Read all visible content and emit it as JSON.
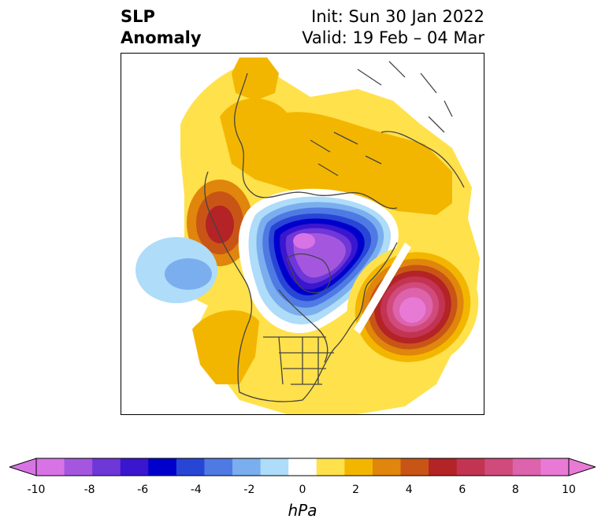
{
  "title": {
    "left_line1": "SLP",
    "left_line2": "Anomaly",
    "right_line1": "Init: Sun 30 Jan 2022",
    "right_line2": "Valid: 19 Feb – 04 Mar"
  },
  "map": {
    "projection": "north-polar-stereographic",
    "field": "sea level pressure anomaly",
    "features": [
      {
        "name": "negative-anomaly-arctic-center",
        "min_value": -10
      },
      {
        "name": "positive-anomaly-north-atlantic",
        "max_value": 10
      },
      {
        "name": "positive-anomaly-north-pacific",
        "max_value": 6
      },
      {
        "name": "negative-anomaly-east-pacific",
        "min_value": -4
      }
    ]
  },
  "colorbar": {
    "unit": "hPa",
    "levels": [
      -10,
      -9,
      -8,
      -7,
      -6,
      -5,
      -4,
      -3,
      -2,
      -1,
      1,
      2,
      3,
      4,
      5,
      6,
      7,
      8,
      9,
      10
    ],
    "colors": [
      "#d873e6",
      "#a457de",
      "#6e37d8",
      "#3b16cf",
      "#0000cc",
      "#2846d6",
      "#4f7ae4",
      "#7aaeee",
      "#aedcf9",
      "#ffffff",
      "#ffe14b",
      "#f3b600",
      "#e0860c",
      "#c85516",
      "#b42325",
      "#c23452",
      "#d04a7b",
      "#dd63ad",
      "#e87ad6"
    ],
    "extend": "both",
    "ticks": [
      "-10",
      "-8",
      "-6",
      "-4",
      "-2",
      "0",
      "2",
      "4",
      "6",
      "8",
      "10"
    ]
  }
}
